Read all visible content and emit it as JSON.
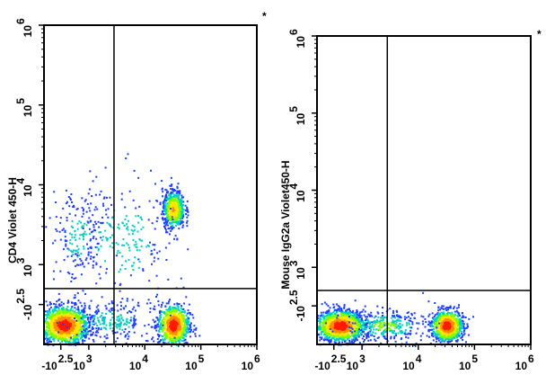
{
  "chart_data": [
    {
      "type": "scatter",
      "style": "density-colored flow cytometry dot plot",
      "ylabel": "CD4 Violet 450-H",
      "annotation": "*",
      "x_ticks": [
        "-10",
        "10",
        "10",
        "10",
        "10"
      ],
      "x_tick_exps": [
        "2.5",
        "3",
        "4",
        "5",
        "6"
      ],
      "y_ticks": [
        "-10",
        "10",
        "10",
        "10",
        "10"
      ],
      "y_tick_exps": [
        "2.5",
        "3",
        "4",
        "5",
        "6"
      ],
      "gate_x": 3.45,
      "gate_y": 2.7,
      "populations": [
        {
          "x": 2.55,
          "y": 2.25,
          "sx": 0.22,
          "sy": 0.12,
          "n": 1400
        },
        {
          "x": 4.5,
          "y": 2.25,
          "sx": 0.14,
          "sy": 0.13,
          "n": 900
        },
        {
          "x": 4.5,
          "y": 3.7,
          "sx": 0.1,
          "sy": 0.12,
          "n": 600
        },
        {
          "x": 3.4,
          "y": 2.3,
          "sx": 0.35,
          "sy": 0.12,
          "n": 220
        },
        {
          "x": 2.8,
          "y": 3.35,
          "sx": 0.25,
          "sy": 0.3,
          "n": 180
        },
        {
          "x": 3.6,
          "y": 3.3,
          "sx": 0.45,
          "sy": 0.4,
          "n": 220
        }
      ]
    },
    {
      "type": "scatter",
      "style": "density-colored flow cytometry dot plot",
      "ylabel": "Mouse IgG2a Violet450-H",
      "annotation": "*",
      "x_ticks": [
        "-10",
        "10",
        "10",
        "10",
        "10"
      ],
      "x_tick_exps": [
        "2.5",
        "3",
        "4",
        "5",
        "6"
      ],
      "y_ticks": [
        "-10",
        "10",
        "10",
        "10",
        "10"
      ],
      "y_tick_exps": [
        "2.5",
        "3",
        "4",
        "5",
        "6"
      ],
      "gate_x": 3.45,
      "gate_y": 2.7,
      "populations": [
        {
          "x": 2.6,
          "y": 2.25,
          "sx": 0.22,
          "sy": 0.1,
          "n": 1400
        },
        {
          "x": 4.5,
          "y": 2.25,
          "sx": 0.14,
          "sy": 0.1,
          "n": 900
        },
        {
          "x": 3.4,
          "y": 2.25,
          "sx": 0.35,
          "sy": 0.1,
          "n": 300
        }
      ]
    }
  ]
}
